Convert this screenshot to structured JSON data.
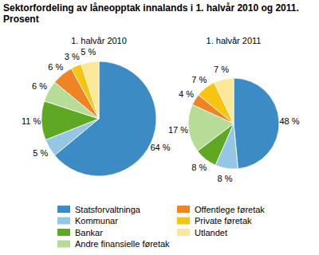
{
  "title": "Sektorfordeling av låneopptak innalands i 1. halvår 2010 og 2011. Prosent",
  "chart_data": [
    {
      "type": "pie",
      "title": "1. halvår 2010",
      "categories": [
        "Statsforvaltninga",
        "Kommunar",
        "Bankar",
        "Andre finansielle føretak",
        "Offentlege føretak",
        "Private føretak",
        "Utlandet"
      ],
      "values": [
        64,
        5,
        11,
        6,
        6,
        3,
        5
      ],
      "value_labels": [
        "64 %",
        "5 %",
        "11 %",
        "6 %",
        "6 %",
        "3 %",
        "5 %"
      ],
      "colors": [
        "#3d8bc4",
        "#95c6e6",
        "#5ea824",
        "#b7dc98",
        "#ef8424",
        "#f7c412",
        "#fde89a"
      ],
      "data_labels": true,
      "legend": "bottom"
    },
    {
      "type": "pie",
      "title": "1. halvår 2011",
      "categories": [
        "Statsforvaltninga",
        "Kommunar",
        "Bankar",
        "Andre finansielle føretak",
        "Offentlege føretak",
        "Private føretak",
        "Utlandet"
      ],
      "values": [
        48,
        8,
        8,
        17,
        4,
        7,
        7
      ],
      "value_labels": [
        "48 %",
        "8 %",
        "8 %",
        "17 %",
        "4 %",
        "7 %",
        "7 %"
      ],
      "colors": [
        "#3d8bc4",
        "#95c6e6",
        "#5ea824",
        "#b7dc98",
        "#ef8424",
        "#f7c412",
        "#fde89a"
      ],
      "data_labels": true
    }
  ]
}
